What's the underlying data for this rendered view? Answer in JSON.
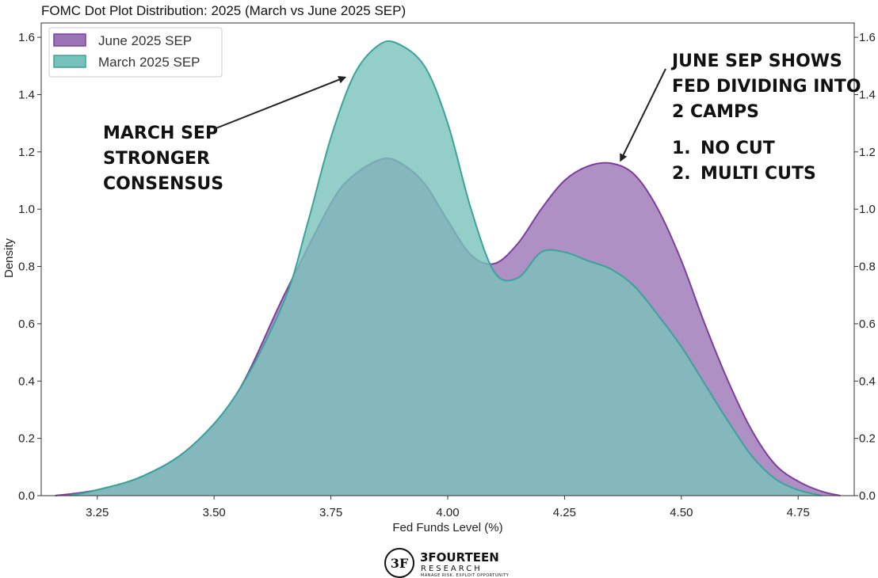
{
  "chart_data": {
    "type": "area",
    "title": "FOMC Dot Plot Distribution: 2025 (March vs June 2025 SEP)",
    "xlabel": "Fed Funds Level (%)",
    "ylabel": "Density",
    "xlim": [
      3.13,
      4.87
    ],
    "ylim": [
      0,
      1.65
    ],
    "x_ticks": [
      3.25,
      3.5,
      3.75,
      4.0,
      4.25,
      4.5,
      4.75
    ],
    "x_tick_labels": [
      "3.25",
      "3.50",
      "3.75",
      "4.00",
      "4.25",
      "4.50",
      "4.75"
    ],
    "y_ticks": [
      0,
      0.2,
      0.4,
      0.6,
      0.8,
      1.0,
      1.2,
      1.4,
      1.6
    ],
    "y_tick_labels": [
      "0.0",
      "0.2",
      "0.4",
      "0.6",
      "0.8",
      "1.0",
      "1.2",
      "1.4",
      "1.6"
    ],
    "right_y_tick_labels": [
      "0.0",
      "0.2",
      "0.4",
      "0.6",
      "0.8",
      "1.0",
      "1.2",
      "1.4",
      "1.6"
    ],
    "grid": false,
    "legend": "top-left",
    "series": [
      {
        "name": "June 2025 SEP",
        "color": "#7b3f9b",
        "fill": "#9b74b5",
        "x": [
          3.16,
          3.25,
          3.35,
          3.45,
          3.55,
          3.65,
          3.75,
          3.8,
          3.86,
          3.9,
          3.95,
          4.0,
          4.05,
          4.1,
          4.15,
          4.2,
          4.25,
          4.3,
          4.35,
          4.4,
          4.45,
          4.5,
          4.55,
          4.6,
          4.65,
          4.7,
          4.75,
          4.8,
          4.84
        ],
        "y": [
          0.0,
          0.02,
          0.07,
          0.17,
          0.36,
          0.7,
          1.02,
          1.12,
          1.175,
          1.16,
          1.09,
          0.96,
          0.84,
          0.81,
          0.88,
          1.0,
          1.1,
          1.15,
          1.16,
          1.12,
          1.0,
          0.82,
          0.6,
          0.4,
          0.23,
          0.11,
          0.05,
          0.015,
          0.0
        ]
      },
      {
        "name": "March 2025 SEP",
        "color": "#3aa39a",
        "fill": "#79c2bb",
        "x": [
          3.19,
          3.25,
          3.35,
          3.45,
          3.55,
          3.65,
          3.7,
          3.75,
          3.8,
          3.85,
          3.89,
          3.95,
          4.0,
          4.05,
          4.1,
          4.15,
          4.2,
          4.25,
          4.3,
          4.35,
          4.4,
          4.45,
          4.5,
          4.55,
          4.6,
          4.65,
          4.7,
          4.75,
          4.8
        ],
        "y": [
          0.0,
          0.02,
          0.07,
          0.17,
          0.36,
          0.68,
          0.95,
          1.25,
          1.47,
          1.57,
          1.58,
          1.5,
          1.3,
          1.0,
          0.78,
          0.76,
          0.85,
          0.85,
          0.82,
          0.79,
          0.73,
          0.63,
          0.52,
          0.39,
          0.26,
          0.14,
          0.06,
          0.02,
          0.0
        ]
      }
    ],
    "annotations": [
      {
        "lines": [
          "MARCH SEP",
          "STRONGER",
          "CONSENSUS"
        ],
        "arrow_to": [
          3.78,
          1.46
        ]
      },
      {
        "lines": [
          "JUNE SEP SHOWS",
          "FED DIVIDING INTO",
          "2 CAMPS"
        ],
        "arrow_to": [
          4.37,
          1.17
        ]
      },
      {
        "lines": [
          "1.",
          "NO CUT",
          "2.",
          "MULTI CUTS"
        ]
      }
    ]
  },
  "logo": {
    "mark": "3F",
    "name": "3FOURTEEN",
    "sub": "RESEARCH",
    "tagline": "MANAGE RISK. EXPLOIT OPPORTUNITY"
  }
}
